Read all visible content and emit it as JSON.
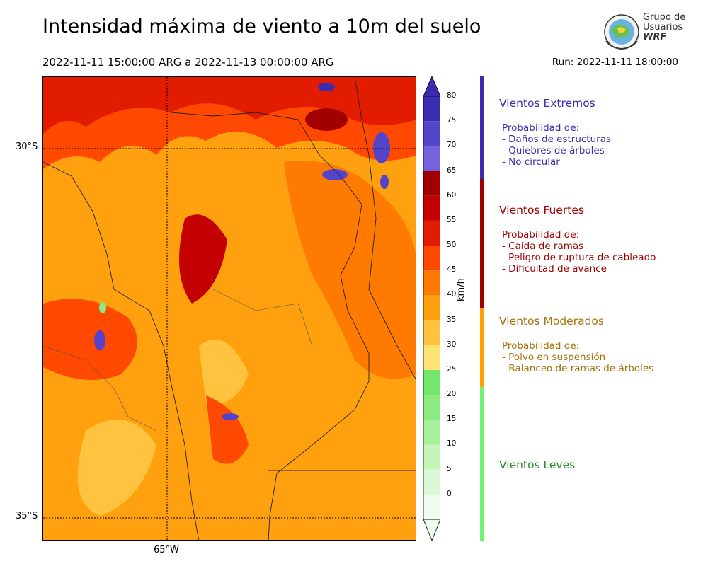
{
  "header": {
    "title": "Intensidad máxima de viento a 10m del suelo",
    "period": "2022-11-11 15:00:00 ARG  a  2022-11-13 00:00:00 ARG",
    "run": "Run: 2022-11-11 18:00:00"
  },
  "logo": {
    "line1": "Grupo de",
    "line2": "Usuarios",
    "line3": "WRF"
  },
  "map": {
    "lat_labels": [
      "30°S",
      "35°S"
    ],
    "lon_labels": [
      "65°W"
    ]
  },
  "colorbar": {
    "unit": "km/h",
    "ticks": [
      "0",
      "5",
      "10",
      "15",
      "20",
      "25",
      "30",
      "35",
      "40",
      "45",
      "50",
      "55",
      "60",
      "65",
      "70",
      "75",
      "80"
    ],
    "colors": [
      "#f0fcf0",
      "#d9f9d4",
      "#c3f5b8",
      "#a8f09c",
      "#8eeb82",
      "#74e66a",
      "#ffe375",
      "#ffc33f",
      "#ffa10e",
      "#ff7a00",
      "#ff4800",
      "#e11c00",
      "#c40000",
      "#a20000",
      "#7463dc",
      "#5444cc",
      "#3c2bb3"
    ]
  },
  "categories": [
    {
      "title": "Vientos Extremos",
      "desc": "Probabilidad de:\n- Daños de estructuras\n- Quiebres de árboles\n- No circular",
      "color": "#3a2db0",
      "bar": "#3a2db0"
    },
    {
      "title": "Vientos Fuertes",
      "desc": "Probabilidad de:\n- Caida de ramas\n- Peligro de ruptura de cableado\n- Dificultad de avance",
      "color": "#a00000",
      "bar": "#a00000"
    },
    {
      "title": "Vientos Moderados",
      "desc": "Probabilidad de:\n- Polvo en suspensión\n- Balanceo de ramas de árboles",
      "color": "#a8720a",
      "bar": "#ffa000"
    },
    {
      "title": "Vientos Leves",
      "desc": "",
      "color": "#2f8a2f",
      "bar": "#74f274"
    }
  ]
}
